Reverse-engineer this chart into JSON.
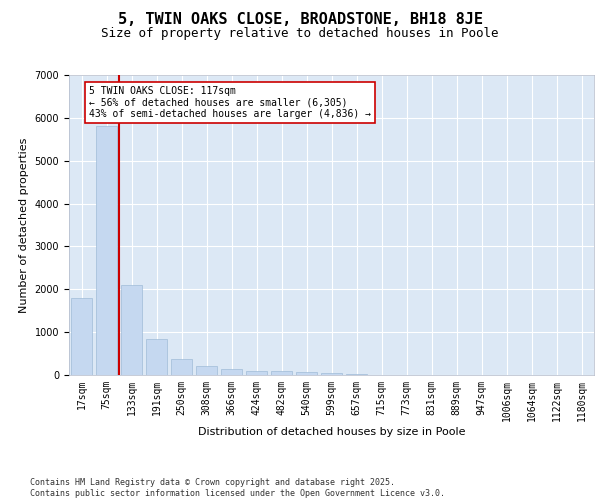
{
  "title": "5, TWIN OAKS CLOSE, BROADSTONE, BH18 8JE",
  "subtitle": "Size of property relative to detached houses in Poole",
  "xlabel": "Distribution of detached houses by size in Poole",
  "ylabel": "Number of detached properties",
  "categories": [
    "17sqm",
    "75sqm",
    "133sqm",
    "191sqm",
    "250sqm",
    "308sqm",
    "366sqm",
    "424sqm",
    "482sqm",
    "540sqm",
    "599sqm",
    "657sqm",
    "715sqm",
    "773sqm",
    "831sqm",
    "889sqm",
    "947sqm",
    "1006sqm",
    "1064sqm",
    "1122sqm",
    "1180sqm"
  ],
  "values": [
    1800,
    5820,
    2100,
    830,
    370,
    220,
    130,
    100,
    90,
    70,
    45,
    20,
    8,
    5,
    4,
    3,
    2,
    2,
    1,
    1,
    1
  ],
  "bar_color": "#c5d8f0",
  "bar_edge_color": "#a0bcd8",
  "vline_color": "#cc0000",
  "annotation_text": "5 TWIN OAKS CLOSE: 117sqm\n← 56% of detached houses are smaller (6,305)\n43% of semi-detached houses are larger (4,836) →",
  "annotation_box_edge_color": "#cc0000",
  "ylim": [
    0,
    7000
  ],
  "yticks": [
    0,
    1000,
    2000,
    3000,
    4000,
    5000,
    6000,
    7000
  ],
  "bg_color": "#dce8f5",
  "grid_color": "#ffffff",
  "footer": "Contains HM Land Registry data © Crown copyright and database right 2025.\nContains public sector information licensed under the Open Government Licence v3.0.",
  "title_fontsize": 11,
  "subtitle_fontsize": 9,
  "axis_label_fontsize": 8,
  "tick_fontsize": 7,
  "annotation_fontsize": 7,
  "footer_fontsize": 6
}
